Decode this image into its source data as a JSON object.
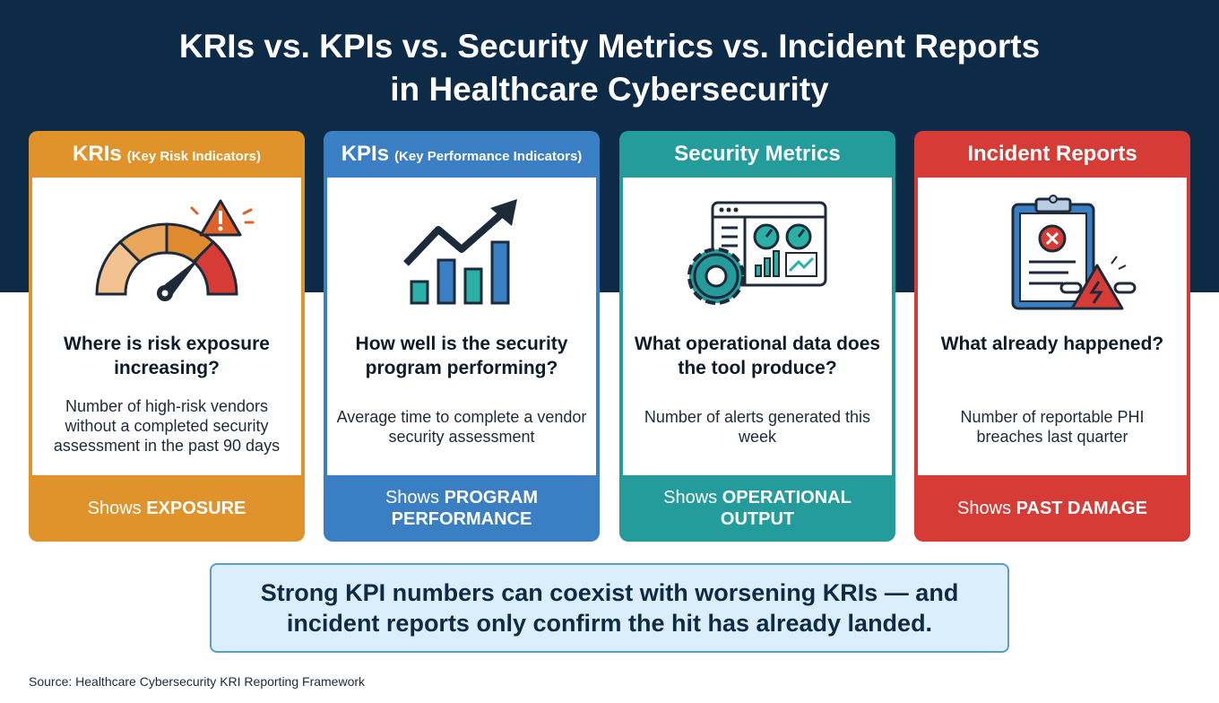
{
  "title": {
    "line1": "KRIs vs. KPIs vs. Security Metrics vs. Incident Reports",
    "line2": "in Healthcare Cybersecurity"
  },
  "colors": {
    "background_header": "#0d2a47",
    "kri": "#e0922b",
    "kpi": "#3a7ec4",
    "metrics": "#259c9c",
    "incident": "#d63b36"
  },
  "cards": [
    {
      "heading": "KRIs",
      "heading_sub": "(Key Risk Indicators)",
      "icon": "risk-gauge-warning-icon",
      "question": "Where is risk exposure increasing?",
      "example": "Number of high-risk vendors without a completed security assessment in the past 90 days",
      "footer_prefix": "Shows",
      "footer_emphasis": "EXPOSURE"
    },
    {
      "heading": "KPIs",
      "heading_sub": "(Key Performance Indicators)",
      "icon": "bar-chart-trend-up-icon",
      "question": "How well is the security program performing?",
      "example": "Average time to complete a vendor security assessment",
      "footer_prefix": "Shows",
      "footer_emphasis": "PROGRAM PERFORMANCE"
    },
    {
      "heading": "Security Metrics",
      "heading_sub": "",
      "icon": "dashboard-gear-icon",
      "question": "What operational data does the tool produce?",
      "example": "Number of alerts generated this week",
      "footer_prefix": "Shows",
      "footer_emphasis": "OPERATIONAL OUTPUT"
    },
    {
      "heading": "Incident Reports",
      "heading_sub": "",
      "icon": "clipboard-broken-chain-warning-icon",
      "question": "What already happened?",
      "example": "Number of reportable PHI breaches last quarter",
      "footer_prefix": "Shows",
      "footer_emphasis": "PAST DAMAGE"
    }
  ],
  "callout": {
    "line1": "Strong KPI numbers can coexist with worsening KRIs — and",
    "line2": "incident reports only confirm the hit has already landed."
  },
  "source": "Source: Healthcare Cybersecurity KRI Reporting Framework"
}
